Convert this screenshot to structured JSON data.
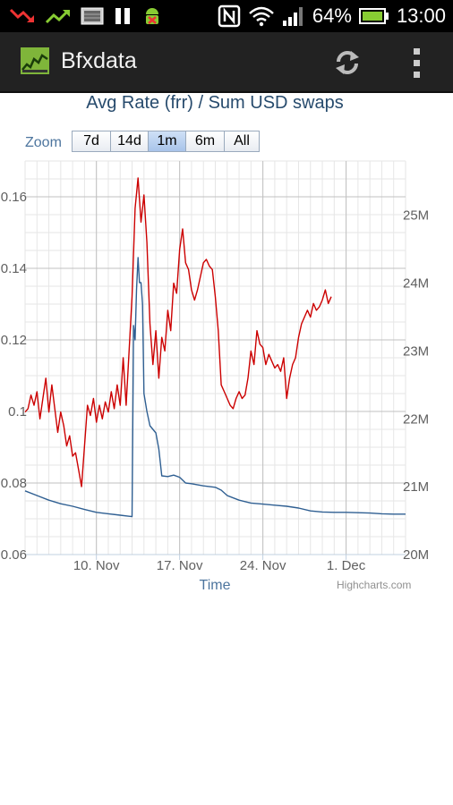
{
  "status_bar": {
    "battery_percent": "64%",
    "time": "13:00",
    "icons": [
      "trend-down-icon",
      "trend-up-icon",
      "gallery-icon",
      "pause-icon",
      "android-debug-icon",
      "nfc-icon",
      "wifi-icon",
      "signal-icon",
      "battery-icon"
    ]
  },
  "action_bar": {
    "title": "Bfxdata",
    "logo": "bfxdata-chart-logo-icon",
    "actions": [
      "refresh-icon",
      "overflow-menu-icon"
    ]
  },
  "zoom": {
    "label": "Zoom",
    "buttons": [
      "7d",
      "14d",
      "1m",
      "6m",
      "All"
    ],
    "active": "1m"
  },
  "chart_data": {
    "type": "line",
    "title": "Avg Rate (frr) / Sum USD swaps",
    "xlabel": "Time",
    "credits": "Highcharts.com",
    "x_range": [
      "2013-11-04",
      "2013-12-06"
    ],
    "x_ticks": [
      "10. Nov",
      "17. Nov",
      "24. Nov",
      "1. Dec"
    ],
    "x_tick_dates": [
      "2013-11-10",
      "2013-11-17",
      "2013-11-24",
      "2013-12-01"
    ],
    "y_left": {
      "min": 0.06,
      "max": 0.17,
      "ticks": [
        "0.06",
        "0.08",
        "0.1",
        "0.12",
        "0.14",
        "0.16"
      ],
      "tick_values": [
        0.06,
        0.08,
        0.1,
        0.12,
        0.14,
        0.16
      ]
    },
    "y_right": {
      "min": 20,
      "max": 25.8,
      "unit": "M",
      "ticks": [
        "20M",
        "21M",
        "22M",
        "23M",
        "24M",
        "25M"
      ],
      "tick_values": [
        20,
        21,
        22,
        23,
        24,
        25
      ]
    },
    "grid": true,
    "series": [
      {
        "axis": "right",
        "color": "#cc0000",
        "points": [
          [
            "2013-11-04 00:00",
            22.1
          ],
          [
            "2013-11-04 06:00",
            22.15
          ],
          [
            "2013-11-04 12:00",
            22.35
          ],
          [
            "2013-11-04 18:00",
            22.2
          ],
          [
            "2013-11-05 00:00",
            22.4
          ],
          [
            "2013-11-05 06:00",
            22.0
          ],
          [
            "2013-11-05 12:00",
            22.3
          ],
          [
            "2013-11-05 18:00",
            22.6
          ],
          [
            "2013-11-06 00:00",
            22.1
          ],
          [
            "2013-11-06 06:00",
            22.5
          ],
          [
            "2013-11-06 12:00",
            22.15
          ],
          [
            "2013-11-06 18:00",
            21.8
          ],
          [
            "2013-11-07 00:00",
            22.1
          ],
          [
            "2013-11-07 06:00",
            21.9
          ],
          [
            "2013-11-07 12:00",
            21.6
          ],
          [
            "2013-11-07 18:00",
            21.75
          ],
          [
            "2013-11-08 00:00",
            21.45
          ],
          [
            "2013-11-08 06:00",
            21.5
          ],
          [
            "2013-11-08 12:00",
            21.25
          ],
          [
            "2013-11-08 18:00",
            21.0
          ],
          [
            "2013-11-09 00:00",
            21.6
          ],
          [
            "2013-11-09 06:00",
            22.2
          ],
          [
            "2013-11-09 12:00",
            22.05
          ],
          [
            "2013-11-09 18:00",
            22.3
          ],
          [
            "2013-11-10 00:00",
            21.95
          ],
          [
            "2013-11-10 06:00",
            22.2
          ],
          [
            "2013-11-10 12:00",
            22.0
          ],
          [
            "2013-11-10 18:00",
            22.25
          ],
          [
            "2013-11-11 00:00",
            22.1
          ],
          [
            "2013-11-11 06:00",
            22.4
          ],
          [
            "2013-11-11 12:00",
            22.15
          ],
          [
            "2013-11-11 18:00",
            22.5
          ],
          [
            "2013-11-12 00:00",
            22.2
          ],
          [
            "2013-11-12 06:00",
            22.9
          ],
          [
            "2013-11-12 12:00",
            22.2
          ],
          [
            "2013-11-12 18:00",
            23.0
          ],
          [
            "2013-11-13 00:00",
            23.8
          ],
          [
            "2013-11-13 06:00",
            25.1
          ],
          [
            "2013-11-13 12:00",
            25.55
          ],
          [
            "2013-11-13 18:00",
            24.9
          ],
          [
            "2013-11-14 00:00",
            25.3
          ],
          [
            "2013-11-14 06:00",
            24.6
          ],
          [
            "2013-11-14 12:00",
            23.4
          ],
          [
            "2013-11-14 18:00",
            22.8
          ],
          [
            "2013-11-15 00:00",
            23.3
          ],
          [
            "2013-11-15 06:00",
            22.6
          ],
          [
            "2013-11-15 12:00",
            23.2
          ],
          [
            "2013-11-15 18:00",
            23.0
          ],
          [
            "2013-11-16 00:00",
            23.6
          ],
          [
            "2013-11-16 06:00",
            23.3
          ],
          [
            "2013-11-16 12:00",
            24.0
          ],
          [
            "2013-11-16 18:00",
            23.85
          ],
          [
            "2013-11-17 00:00",
            24.5
          ],
          [
            "2013-11-17 06:00",
            24.8
          ],
          [
            "2013-11-17 12:00",
            24.3
          ],
          [
            "2013-11-17 18:00",
            24.2
          ],
          [
            "2013-11-18 00:00",
            23.9
          ],
          [
            "2013-11-18 06:00",
            23.75
          ],
          [
            "2013-11-18 12:00",
            23.9
          ],
          [
            "2013-11-18 18:00",
            24.1
          ],
          [
            "2013-11-19 00:00",
            24.3
          ],
          [
            "2013-11-19 06:00",
            24.35
          ],
          [
            "2013-11-19 12:00",
            24.25
          ],
          [
            "2013-11-19 18:00",
            24.2
          ],
          [
            "2013-11-20 00:00",
            23.8
          ],
          [
            "2013-11-20 06:00",
            23.3
          ],
          [
            "2013-11-20 12:00",
            22.5
          ],
          [
            "2013-11-20 18:00",
            22.4
          ],
          [
            "2013-11-21 00:00",
            22.3
          ],
          [
            "2013-11-21 06:00",
            22.2
          ],
          [
            "2013-11-21 12:00",
            22.15
          ],
          [
            "2013-11-21 18:00",
            22.3
          ],
          [
            "2013-11-22 00:00",
            22.4
          ],
          [
            "2013-11-22 06:00",
            22.3
          ],
          [
            "2013-11-22 12:00",
            22.35
          ],
          [
            "2013-11-22 18:00",
            22.6
          ],
          [
            "2013-11-23 00:00",
            23.0
          ],
          [
            "2013-11-23 06:00",
            22.8
          ],
          [
            "2013-11-23 12:00",
            23.3
          ],
          [
            "2013-11-23 18:00",
            23.1
          ],
          [
            "2013-11-24 00:00",
            23.05
          ],
          [
            "2013-11-24 06:00",
            22.8
          ],
          [
            "2013-11-24 12:00",
            22.95
          ],
          [
            "2013-11-24 18:00",
            22.85
          ],
          [
            "2013-11-25 00:00",
            22.75
          ],
          [
            "2013-11-25 06:00",
            22.8
          ],
          [
            "2013-11-25 12:00",
            22.7
          ],
          [
            "2013-11-25 18:00",
            22.9
          ],
          [
            "2013-11-26 00:00",
            22.3
          ],
          [
            "2013-11-26 06:00",
            22.6
          ],
          [
            "2013-11-26 12:00",
            22.8
          ],
          [
            "2013-11-26 18:00",
            22.9
          ],
          [
            "2013-11-27 00:00",
            23.2
          ],
          [
            "2013-11-27 06:00",
            23.4
          ],
          [
            "2013-11-27 12:00",
            23.5
          ],
          [
            "2013-11-27 18:00",
            23.6
          ],
          [
            "2013-11-28 00:00",
            23.5
          ],
          [
            "2013-11-28 06:00",
            23.7
          ],
          [
            "2013-11-28 12:00",
            23.6
          ],
          [
            "2013-11-28 18:00",
            23.65
          ],
          [
            "2013-11-29 00:00",
            23.75
          ],
          [
            "2013-11-29 06:00",
            23.9
          ],
          [
            "2013-11-29 12:00",
            23.7
          ],
          [
            "2013-11-29 18:00",
            23.8
          ]
        ]
      },
      {
        "axis": "left",
        "color": "#2f5f92",
        "points": [
          [
            "2013-11-04 00:00",
            0.0778
          ],
          [
            "2013-11-05 00:00",
            0.0765
          ],
          [
            "2013-11-06 00:00",
            0.0752
          ],
          [
            "2013-11-07 00:00",
            0.0742
          ],
          [
            "2013-11-08 00:00",
            0.0735
          ],
          [
            "2013-11-09 00:00",
            0.0726
          ],
          [
            "2013-11-10 00:00",
            0.0718
          ],
          [
            "2013-11-11 00:00",
            0.0714
          ],
          [
            "2013-11-12 00:00",
            0.071
          ],
          [
            "2013-11-12 18:00",
            0.0707
          ],
          [
            "2013-11-13 00:00",
            0.0706
          ],
          [
            "2013-11-13 03:00",
            0.124
          ],
          [
            "2013-11-13 06:00",
            0.12
          ],
          [
            "2013-11-13 09:00",
            0.134
          ],
          [
            "2013-11-13 12:00",
            0.143
          ],
          [
            "2013-11-13 15:00",
            0.136
          ],
          [
            "2013-11-13 18:00",
            0.136
          ],
          [
            "2013-11-13 21:00",
            0.13
          ],
          [
            "2013-11-14 00:00",
            0.105
          ],
          [
            "2013-11-14 06:00",
            0.1
          ],
          [
            "2013-11-14 12:00",
            0.096
          ],
          [
            "2013-11-15 00:00",
            0.094
          ],
          [
            "2013-11-15 06:00",
            0.0895
          ],
          [
            "2013-11-15 12:00",
            0.082
          ],
          [
            "2013-11-16 00:00",
            0.0818
          ],
          [
            "2013-11-16 12:00",
            0.0822
          ],
          [
            "2013-11-17 00:00",
            0.0816
          ],
          [
            "2013-11-17 12:00",
            0.08
          ],
          [
            "2013-11-18 00:00",
            0.0798
          ],
          [
            "2013-11-19 00:00",
            0.0792
          ],
          [
            "2013-11-20 00:00",
            0.0788
          ],
          [
            "2013-11-20 12:00",
            0.078
          ],
          [
            "2013-11-21 00:00",
            0.0765
          ],
          [
            "2013-11-22 00:00",
            0.0752
          ],
          [
            "2013-11-23 00:00",
            0.0744
          ],
          [
            "2013-11-24 00:00",
            0.0741
          ],
          [
            "2013-11-25 00:00",
            0.0738
          ],
          [
            "2013-11-26 00:00",
            0.0735
          ],
          [
            "2013-11-27 00:00",
            0.073
          ],
          [
            "2013-11-28 00:00",
            0.0722
          ],
          [
            "2013-11-29 00:00",
            0.0719
          ],
          [
            "2013-11-30 00:00",
            0.0718
          ],
          [
            "2013-12-01 00:00",
            0.0718
          ],
          [
            "2013-12-02 00:00",
            0.0717
          ],
          [
            "2013-12-03 00:00",
            0.0716
          ],
          [
            "2013-12-04 00:00",
            0.0714
          ],
          [
            "2013-12-05 00:00",
            0.0713
          ],
          [
            "2013-12-06 00:00",
            0.0713
          ]
        ]
      }
    ]
  }
}
